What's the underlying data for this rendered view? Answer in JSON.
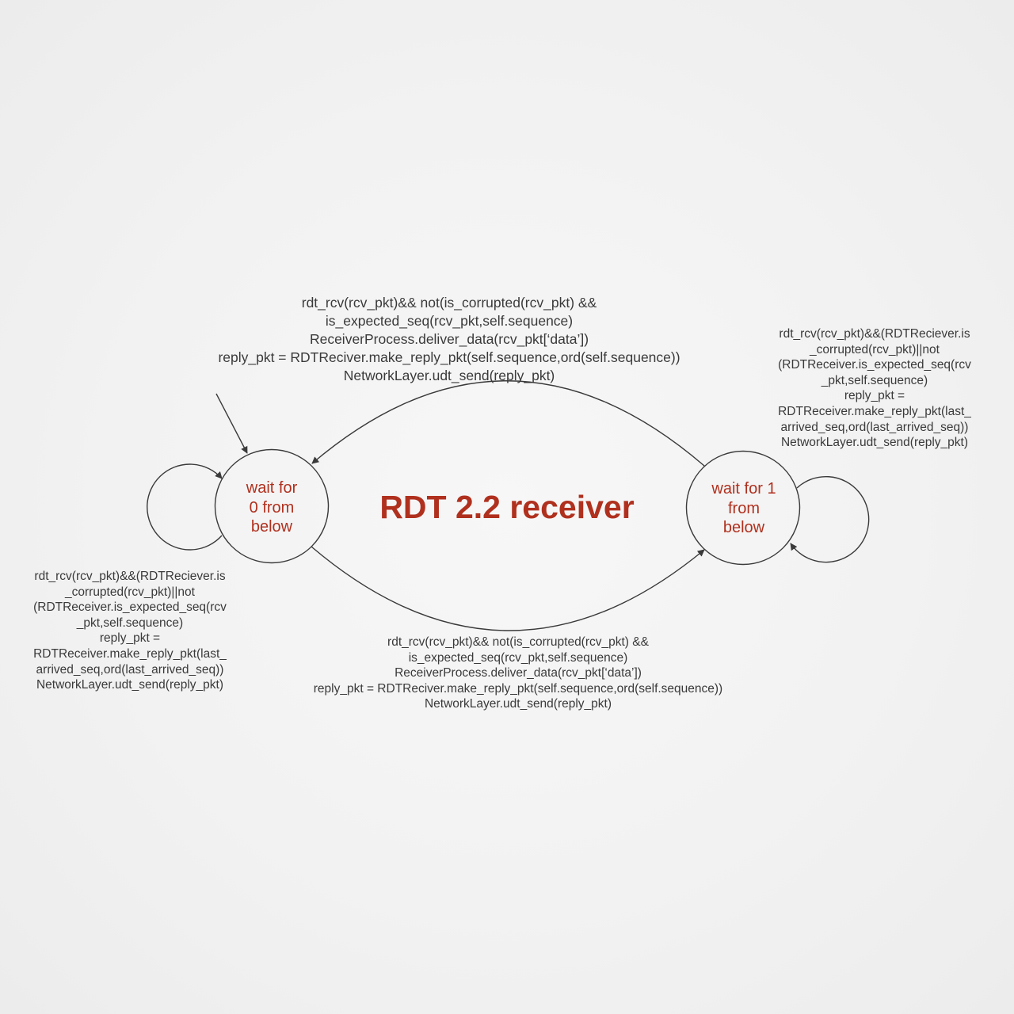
{
  "title": "RDT 2.2 receiver",
  "colors": {
    "accent": "#b0301e",
    "text": "#3a3a3a",
    "stroke": "#3a3a3a"
  },
  "states": [
    {
      "id": "state-0",
      "lines": [
        "wait for",
        "0 from",
        "below"
      ]
    },
    {
      "id": "state-1",
      "lines": [
        "wait for 1",
        "from",
        "below"
      ]
    }
  ],
  "transitions": {
    "top_0_to_1_return": {
      "lines": [
        "rdt_rcv(rcv_pkt)&& not(is_corrupted(rcv_pkt) &&",
        "is_expected_seq(rcv_pkt,self.sequence)",
        "ReceiverProcess.deliver_data(rcv_pkt[‘data’])",
        "reply_pkt = RDTReciver.make_reply_pkt(self.sequence,ord(self.sequence))",
        "NetworkLayer.udt_send(reply_pkt)"
      ]
    },
    "bottom_0_to_1": {
      "lines": [
        "rdt_rcv(rcv_pkt)&& not(is_corrupted(rcv_pkt) &&",
        "is_expected_seq(rcv_pkt,self.sequence)",
        "ReceiverProcess.deliver_data(rcv_pkt[‘data’])",
        "reply_pkt = RDTReciver.make_reply_pkt(self.sequence,ord(self.sequence))",
        "NetworkLayer.udt_send(reply_pkt)"
      ]
    },
    "self_loop_state_1": {
      "lines": [
        "rdt_rcv(rcv_pkt)&&(RDTReciever.is",
        "_corrupted(rcv_pkt)||not",
        "(RDTReceiver.is_expected_seq(rcv",
        "_pkt,self.sequence)",
        "reply_pkt =",
        "RDTReceiver.make_reply_pkt(last_",
        "arrived_seq,ord(last_arrived_seq))",
        "NetworkLayer.udt_send(reply_pkt)"
      ]
    },
    "self_loop_state_0": {
      "lines": [
        "rdt_rcv(rcv_pkt)&&(RDTReciever.is",
        "_corrupted(rcv_pkt)||not",
        "(RDTReceiver.is_expected_seq(rcv",
        "_pkt,self.sequence)",
        "reply_pkt =",
        "RDTReceiver.make_reply_pkt(last_",
        "arrived_seq,ord(last_arrived_seq))",
        "NetworkLayer.udt_send(reply_pkt)"
      ]
    }
  }
}
